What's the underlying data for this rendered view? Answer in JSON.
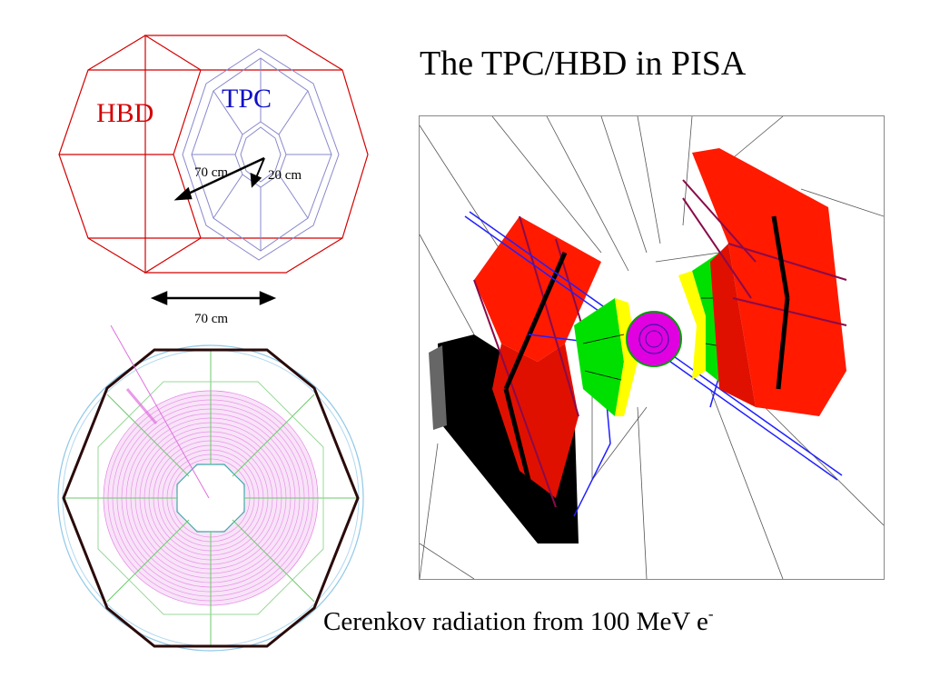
{
  "slide": {
    "title": "The TPC/HBD in PISA",
    "caption_main": "Cerenkov radiation from 100 MeV e",
    "caption_superscript": "-"
  },
  "schematic": {
    "hbd_label": "HBD",
    "tpc_label": "TPC",
    "radius_outer_label": "70 cm",
    "radius_inner_label": "20 cm",
    "length_label": "70 cm",
    "colors": {
      "hbd": "#d40000",
      "tpc": "#1010c8",
      "arrows": "#000000"
    }
  },
  "cross_section": {
    "colors": {
      "octagon": "#2a0a0a",
      "rings": "#e070e0",
      "circle": "#90c8e8",
      "spokes": "#6cc96c"
    }
  },
  "render3d": {
    "colors": {
      "red_panels": "#ff1a00",
      "green_panels": "#00e000",
      "yellow_edges": "#ffff00",
      "magenta_core": "#e000e0",
      "blue_frame": "#2020ff",
      "black_modules": "#000000"
    }
  }
}
